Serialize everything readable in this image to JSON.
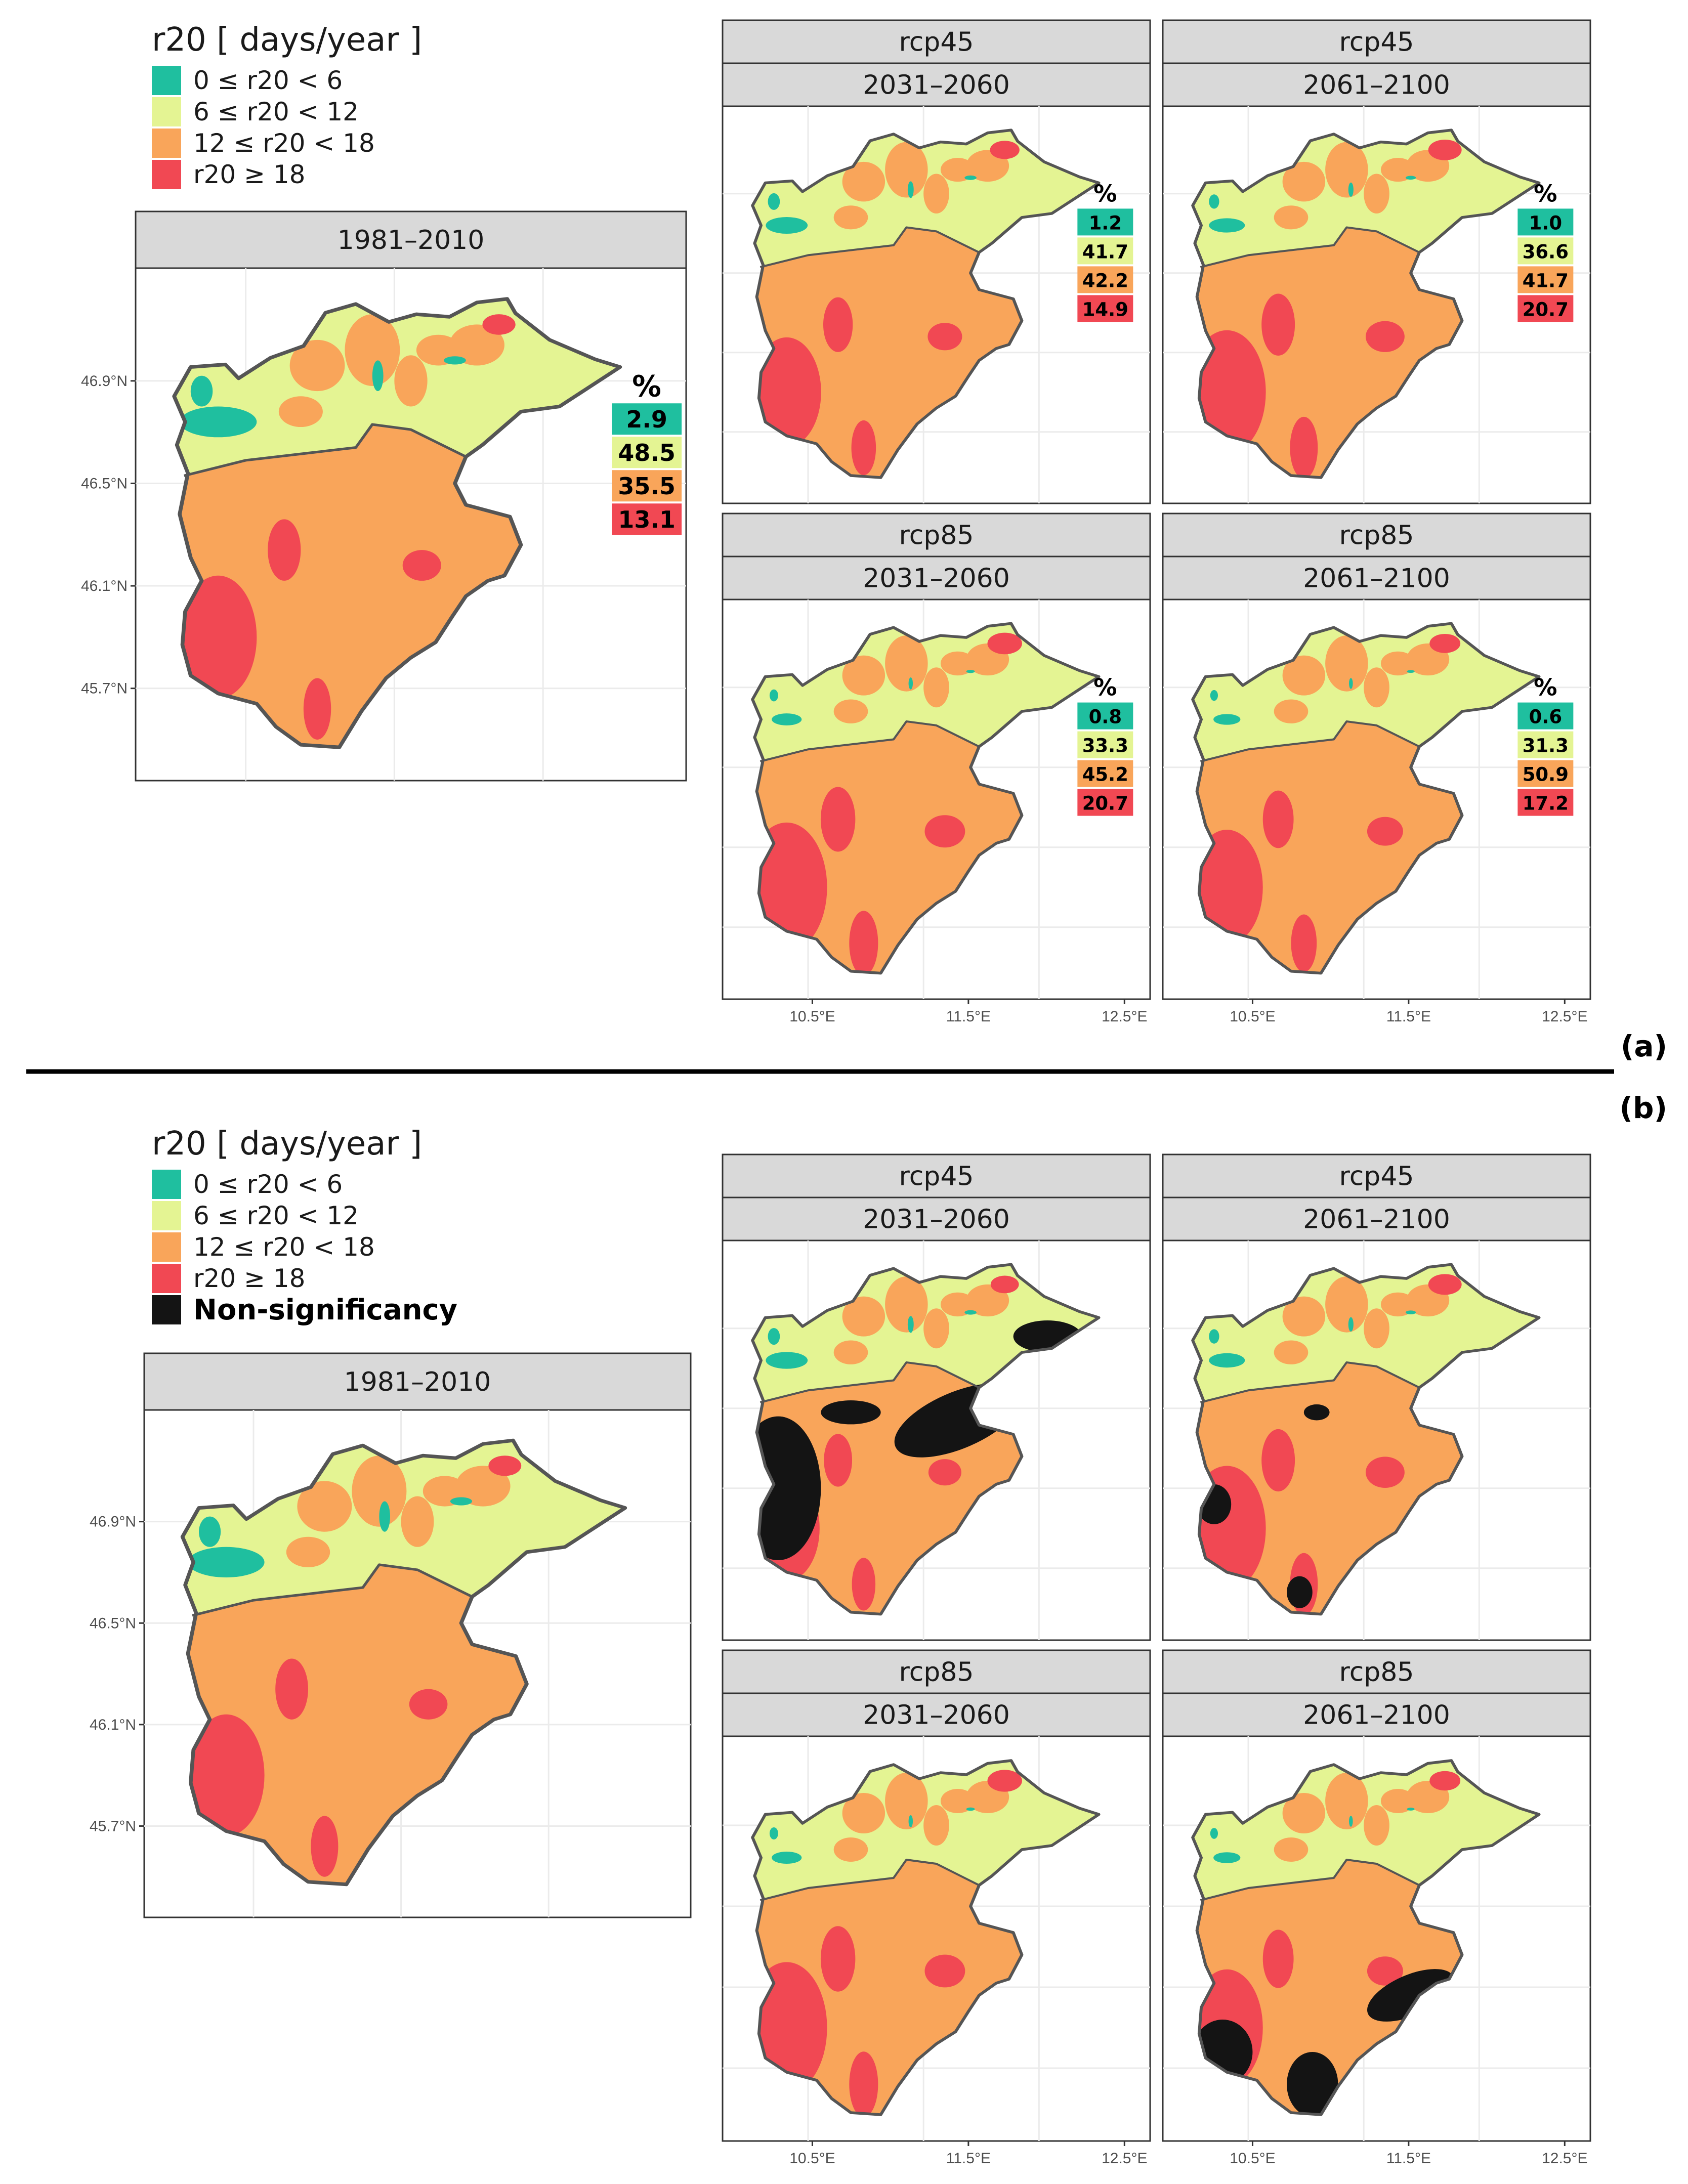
{
  "colors": {
    "c0": "#1fbf9f",
    "c1": "#e4f493",
    "c2": "#f9a55a",
    "c3": "#f14853",
    "nonsig": "#141414",
    "border": "#555555",
    "strip": "#d9d9d9",
    "grid": "#ebebeb"
  },
  "legend": {
    "title": "r20 [ days/year ]",
    "classes": [
      {
        "label": "0 ≤ r20 < 6",
        "color": "#1fbf9f"
      },
      {
        "label": "6 ≤ r20 < 12",
        "color": "#e4f493"
      },
      {
        "label": "12 ≤ r20 < 18",
        "color": "#f9a55a"
      },
      {
        "label": "r20 ≥ 18",
        "color": "#f14853"
      }
    ],
    "nonsig_label": "Non-significancy"
  },
  "axes": {
    "lat_ticks": [
      "46.9°N",
      "46.5°N",
      "46.1°N",
      "45.7°N"
    ],
    "lon_ticks": [
      "10.5°E",
      "11.5°E",
      "12.5°E"
    ]
  },
  "pct_header": "%",
  "part_a": {
    "label": "(a)",
    "baseline": {
      "period": "1981–2010",
      "pct": [
        "2.9",
        "48.5",
        "35.5",
        "13.1"
      ]
    },
    "panels": [
      {
        "scenario": "rcp45",
        "period": "2031–2060",
        "pct": [
          "1.2",
          "41.7",
          "42.2",
          "14.9"
        ]
      },
      {
        "scenario": "rcp45",
        "period": "2061–2100",
        "pct": [
          "1.0",
          "36.6",
          "41.7",
          "20.7"
        ]
      },
      {
        "scenario": "rcp85",
        "period": "2031–2060",
        "pct": [
          "0.8",
          "33.3",
          "45.2",
          "20.7"
        ]
      },
      {
        "scenario": "rcp85",
        "period": "2061–2100",
        "pct": [
          "0.6",
          "31.3",
          "50.9",
          "17.2"
        ]
      }
    ]
  },
  "part_b": {
    "label": "(b)",
    "baseline": {
      "period": "1981–2010"
    },
    "panels": [
      {
        "scenario": "rcp45",
        "period": "2031–2060",
        "nonsig": "large"
      },
      {
        "scenario": "rcp45",
        "period": "2061–2100",
        "nonsig": "small"
      },
      {
        "scenario": "rcp85",
        "period": "2031–2060",
        "nonsig": "none"
      },
      {
        "scenario": "rcp85",
        "period": "2061–2100",
        "nonsig": "south"
      }
    ]
  }
}
